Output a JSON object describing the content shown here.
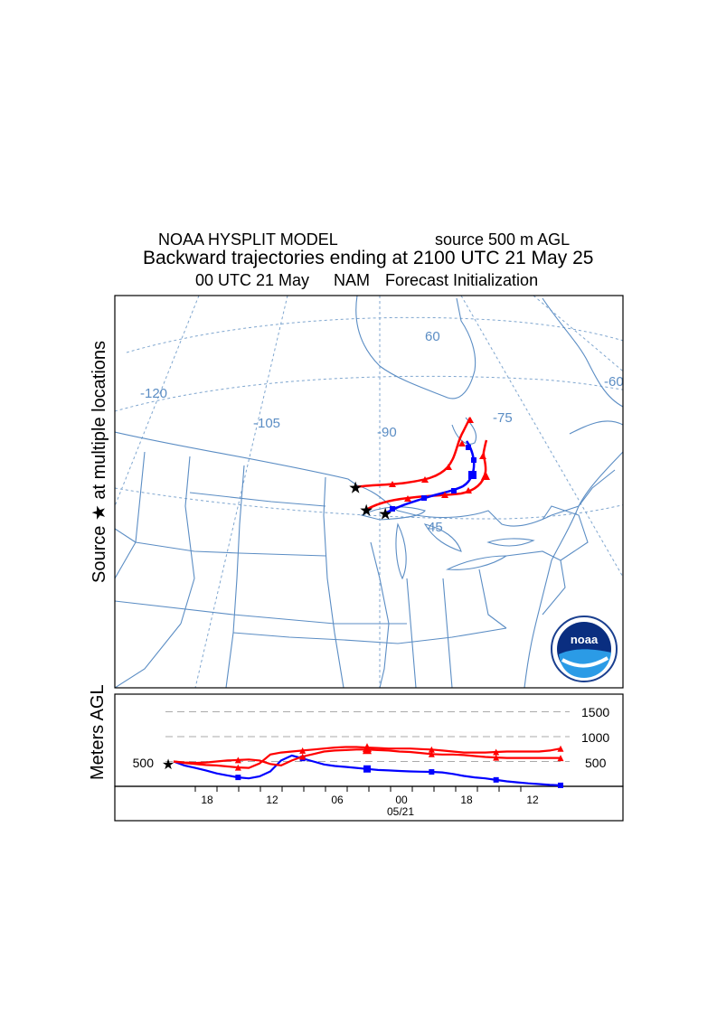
{
  "header": {
    "model": "NOAA HYSPLIT MODEL",
    "source_height": "source 500 m AGL",
    "description": "Backward trajectories ending at 2100 UTC 21 May 25",
    "init_time": "00 UTC 21 May",
    "met_model": "NAM",
    "init_label": "Forecast Initialization"
  },
  "map": {
    "side_label": "Source ★   at multiple locations",
    "longitude_labels": [
      "-120",
      "-105",
      "-90",
      "-75",
      "-60"
    ],
    "latitude_labels": [
      "60",
      "45"
    ],
    "logo_text": "noaa",
    "boundary_color": "#5b8dc4"
  },
  "chart_data": {
    "type": "line",
    "ylabel": "Meters AGL",
    "height_labels": [
      "1500",
      "1000",
      "500"
    ],
    "source_height_label": "500",
    "x_ticks": [
      "18",
      "12",
      "06",
      "00",
      "18",
      "12"
    ],
    "x_date": "05/21",
    "ylim": [
      0,
      1700
    ],
    "x": [
      0,
      -3,
      -6,
      -9,
      -12,
      -15,
      -18,
      -21,
      -24,
      -27,
      -30,
      -33,
      -36,
      -39,
      -42,
      -45,
      -48,
      -51,
      -54,
      -57,
      -60,
      -63,
      -66,
      -69,
      -72,
      -75,
      -78,
      -81,
      -84,
      -87,
      -90,
      -93,
      -96,
      -99,
      -102,
      -105,
      -108
    ],
    "series": [
      {
        "color": "#0000ff",
        "marker": "square",
        "values": [
          500,
          420,
          370,
          320,
          260,
          220,
          180,
          160,
          200,
          300,
          520,
          620,
          560,
          500,
          440,
          410,
          390,
          370,
          350,
          330,
          320,
          310,
          300,
          295,
          290,
          280,
          250,
          210,
          180,
          160,
          130,
          100,
          80,
          60,
          45,
          30,
          20
        ]
      },
      {
        "color": "#ff0000",
        "marker": "triangle",
        "values": [
          500,
          480,
          470,
          480,
          500,
          520,
          530,
          540,
          520,
          450,
          420,
          520,
          600,
          650,
          700,
          720,
          730,
          740,
          740,
          730,
          720,
          700,
          690,
          670,
          650,
          640,
          640,
          630,
          610,
          590,
          580,
          570,
          570,
          570,
          570,
          570,
          570
        ]
      },
      {
        "color": "#ff0000",
        "marker": "triangle",
        "values": [
          500,
          470,
          450,
          430,
          420,
          400,
          380,
          370,
          460,
          640,
          680,
          700,
          720,
          740,
          760,
          780,
          790,
          790,
          780,
          770,
          760,
          760,
          760,
          750,
          740,
          720,
          700,
          680,
          680,
          680,
          690,
          700,
          700,
          700,
          700,
          720,
          760
        ]
      }
    ]
  }
}
